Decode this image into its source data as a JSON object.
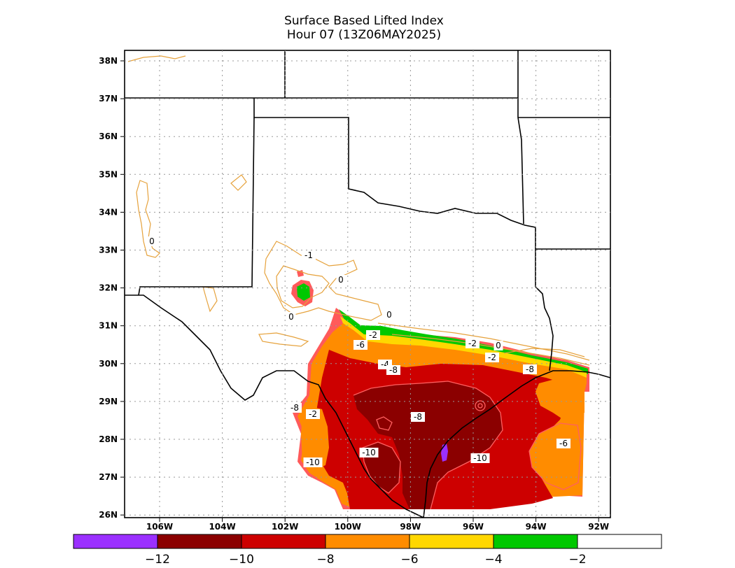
{
  "title": "Surface Based Lifted Index",
  "subtitle": "Hour 07 (13Z06MAY2025)",
  "lat_labels": [
    "38N",
    "37N",
    "36N",
    "35N",
    "34N",
    "33N",
    "32N",
    "31N",
    "30N",
    "29N",
    "28N",
    "27N",
    "26N"
  ],
  "lon_labels": [
    "106W",
    "104W",
    "102W",
    "100W",
    "98W",
    "96W",
    "94W",
    "92W"
  ],
  "contour_labels": [
    "0",
    "-1",
    "0",
    "0",
    "0",
    "-2",
    "-6",
    "-2",
    "0",
    "-2",
    "-4",
    "-8",
    "-4",
    "-8",
    "-2",
    "-8",
    "-10",
    "-10",
    "-10",
    "-6",
    "-8"
  ],
  "colorbar": {
    "colors": [
      "#9b30ff",
      "#8b0000",
      "#cd0000",
      "#ff8c00",
      "#ffd700",
      "#00c800",
      "#ffffff"
    ],
    "labels": [
      "−12",
      "−10",
      "−8",
      "−6",
      "−4",
      "−2"
    ]
  },
  "palette": {
    "very_unstable": "#8b0000",
    "unstable": "#cd0000",
    "moderate": "#ff8c00",
    "marginal": "#ffd700",
    "weak": "#00c800",
    "extreme": "#9b30ff",
    "contour_line": "#e6a23c",
    "edge_line": "#ff5a5a"
  }
}
